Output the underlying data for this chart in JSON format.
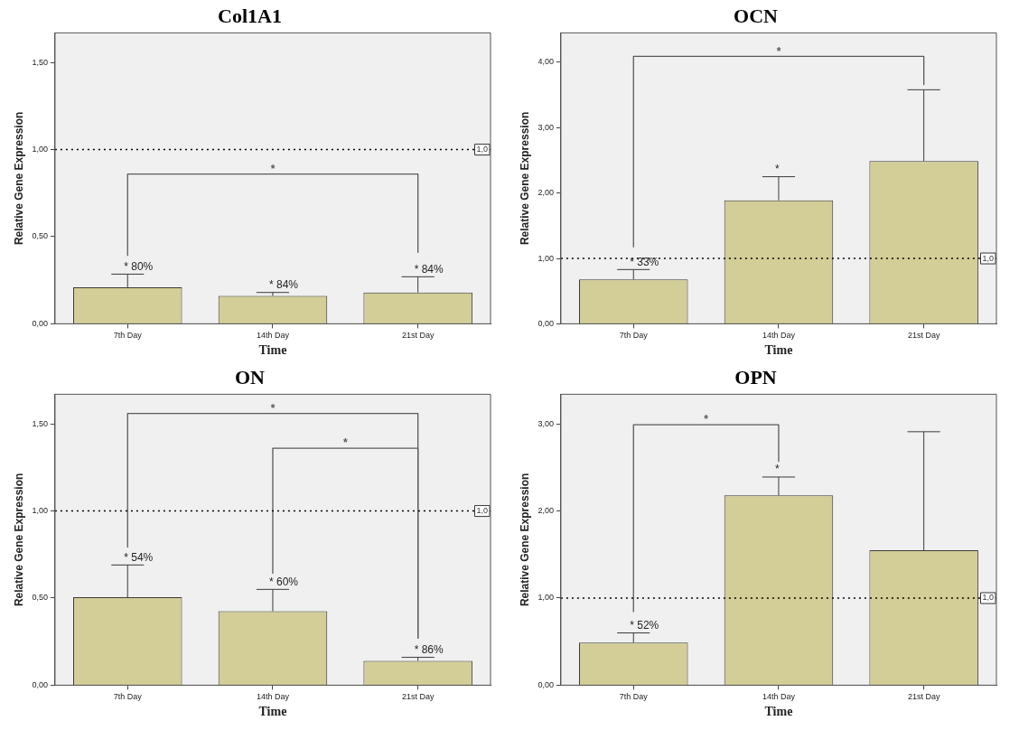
{
  "chart_data": [
    {
      "type": "bar",
      "title": "Col1A1",
      "xlabel": "Time",
      "ylabel": "Relative Gene Expression",
      "categories": [
        "7th Day",
        "14th Day",
        "21st Day"
      ],
      "ylim": [
        0,
        1.67
      ],
      "yticks": [
        {
          "value": 0,
          "label": "0,00"
        },
        {
          "value": 0.5,
          "label": "0,50"
        },
        {
          "value": 1,
          "label": "1,00"
        },
        {
          "value": 1.5,
          "label": "1,50"
        }
      ],
      "grid": false,
      "legend": false,
      "marker": "none",
      "series": [
        {
          "color": "#d3ce97",
          "values": [
            0.21,
            0.16,
            0.18
          ],
          "errors": [
            [
              0.21,
              0.285
            ],
            [
              0.16,
              0.18
            ],
            [
              0.18,
              0.27
            ]
          ]
        },
        {
          "type": "line",
          "name": "*",
          "color": "#595959",
          "x": [
            "7th Day",
            "7th Day",
            "21st Day",
            "21st Day"
          ],
          "values": [
            0.39,
            0.86,
            0.86,
            0.41
          ]
        }
      ],
      "ref_lines": [
        {
          "axis": "y",
          "value": 1,
          "label": "1,0",
          "line_style": "dotted",
          "color": "#000000"
        }
      ],
      "annotations": [
        {
          "text": "* 80%",
          "x": "7th Day",
          "y": 0.285
        },
        {
          "text": "* 84%",
          "x": "14th Day",
          "y": 0.18
        },
        {
          "text": "* 84%",
          "x": "21st Day",
          "y": 0.27
        }
      ]
    },
    {
      "type": "bar",
      "title": "OCN",
      "xlabel": "Time",
      "ylabel": "Relative Gene Expression",
      "categories": [
        "7th Day",
        "14th Day",
        "21st Day"
      ],
      "ylim": [
        0,
        4.45
      ],
      "yticks": [
        {
          "value": 0,
          "label": "0,00"
        },
        {
          "value": 1,
          "label": "1,00"
        },
        {
          "value": 2,
          "label": "2,00"
        },
        {
          "value": 3,
          "label": "3,00"
        },
        {
          "value": 4,
          "label": "4,00"
        }
      ],
      "grid": false,
      "legend": false,
      "marker": "none",
      "series": [
        {
          "color": "#d3ce97",
          "values": [
            0.68,
            1.89,
            2.49
          ],
          "errors": [
            [
              0.68,
              0.83
            ],
            [
              1.89,
              2.25
            ],
            [
              2.49,
              3.58
            ]
          ]
        },
        {
          "type": "line",
          "name": "*",
          "color": "#595959",
          "x": [
            "7th Day",
            "7th Day",
            "21st Day",
            "21st Day"
          ],
          "values": [
            1.17,
            4.09,
            4.09,
            3.66
          ]
        }
      ],
      "ref_lines": [
        {
          "axis": "y",
          "value": 1,
          "label": "1,0",
          "line_style": "dotted",
          "color": "#000000"
        }
      ],
      "annotations": [
        {
          "text": "* 33%",
          "x": "7th Day",
          "y": 0.83
        },
        {
          "text": "*",
          "x": "14th Day",
          "y": 2.25
        }
      ]
    },
    {
      "type": "bar",
      "title": "ON",
      "xlabel": "Time",
      "ylabel": "Relative Gene Expression",
      "categories": [
        "7th Day",
        "14th Day",
        "21st Day"
      ],
      "ylim": [
        0,
        1.67
      ],
      "yticks": [
        {
          "value": 0,
          "label": "0,00"
        },
        {
          "value": 0.5,
          "label": "0,50"
        },
        {
          "value": 1,
          "label": "1,00"
        },
        {
          "value": 1.5,
          "label": "1,50"
        }
      ],
      "grid": false,
      "legend": false,
      "marker": "none",
      "series": [
        {
          "color": "#d3ce97",
          "values": [
            0.505,
            0.425,
            0.14
          ],
          "errors": [
            [
              0.505,
              0.69
            ],
            [
              0.425,
              0.55
            ],
            [
              0.14,
              0.16
            ]
          ]
        },
        {
          "type": "line",
          "name": "*",
          "color": "#595959",
          "x": [
            "7th Day",
            "7th Day",
            "21st Day",
            "21st Day"
          ],
          "values": [
            0.79,
            1.56,
            1.56,
            0.27
          ]
        },
        {
          "type": "line",
          "name": "*",
          "color": "#595959",
          "x": [
            "14th Day",
            "14th Day",
            "21st Day",
            "21st Day"
          ],
          "values": [
            0.64,
            1.36,
            1.36,
            0.27
          ]
        }
      ],
      "ref_lines": [
        {
          "axis": "y",
          "value": 1,
          "label": "1,0",
          "line_style": "dotted",
          "color": "#000000"
        }
      ],
      "annotations": [
        {
          "text": "* 54%",
          "x": "7th Day",
          "y": 0.69
        },
        {
          "text": "* 60%",
          "x": "14th Day",
          "y": 0.55
        },
        {
          "text": "* 86%",
          "x": "21st Day",
          "y": 0.16
        }
      ]
    },
    {
      "type": "bar",
      "title": "OPN",
      "xlabel": "Time",
      "ylabel": "Relative Gene Expression",
      "categories": [
        "7th Day",
        "14th Day",
        "21st Day"
      ],
      "ylim": [
        0,
        3.34
      ],
      "yticks": [
        {
          "value": 0,
          "label": "0,00"
        },
        {
          "value": 1,
          "label": "1,00"
        },
        {
          "value": 2,
          "label": "2,00"
        },
        {
          "value": 3,
          "label": "3,00"
        }
      ],
      "grid": false,
      "legend": false,
      "marker": "none",
      "series": [
        {
          "color": "#d3ce97",
          "values": [
            0.49,
            2.18,
            1.55
          ],
          "errors": [
            [
              0.49,
              0.6
            ],
            [
              2.18,
              2.39
            ],
            [
              1.55,
              2.91
            ]
          ]
        },
        {
          "type": "line",
          "name": "*",
          "color": "#595959",
          "x": [
            "7th Day",
            "7th Day",
            "14th Day",
            "14th Day"
          ],
          "values": [
            0.84,
            2.99,
            2.99,
            2.57
          ]
        }
      ],
      "ref_lines": [
        {
          "axis": "y",
          "value": 1,
          "label": "1,0",
          "line_style": "dotted",
          "color": "#000000"
        }
      ],
      "annotations": [
        {
          "text": "* 52%",
          "x": "7th Day",
          "y": 0.6
        },
        {
          "text": "*",
          "x": "14th Day",
          "y": 2.39
        }
      ]
    }
  ]
}
